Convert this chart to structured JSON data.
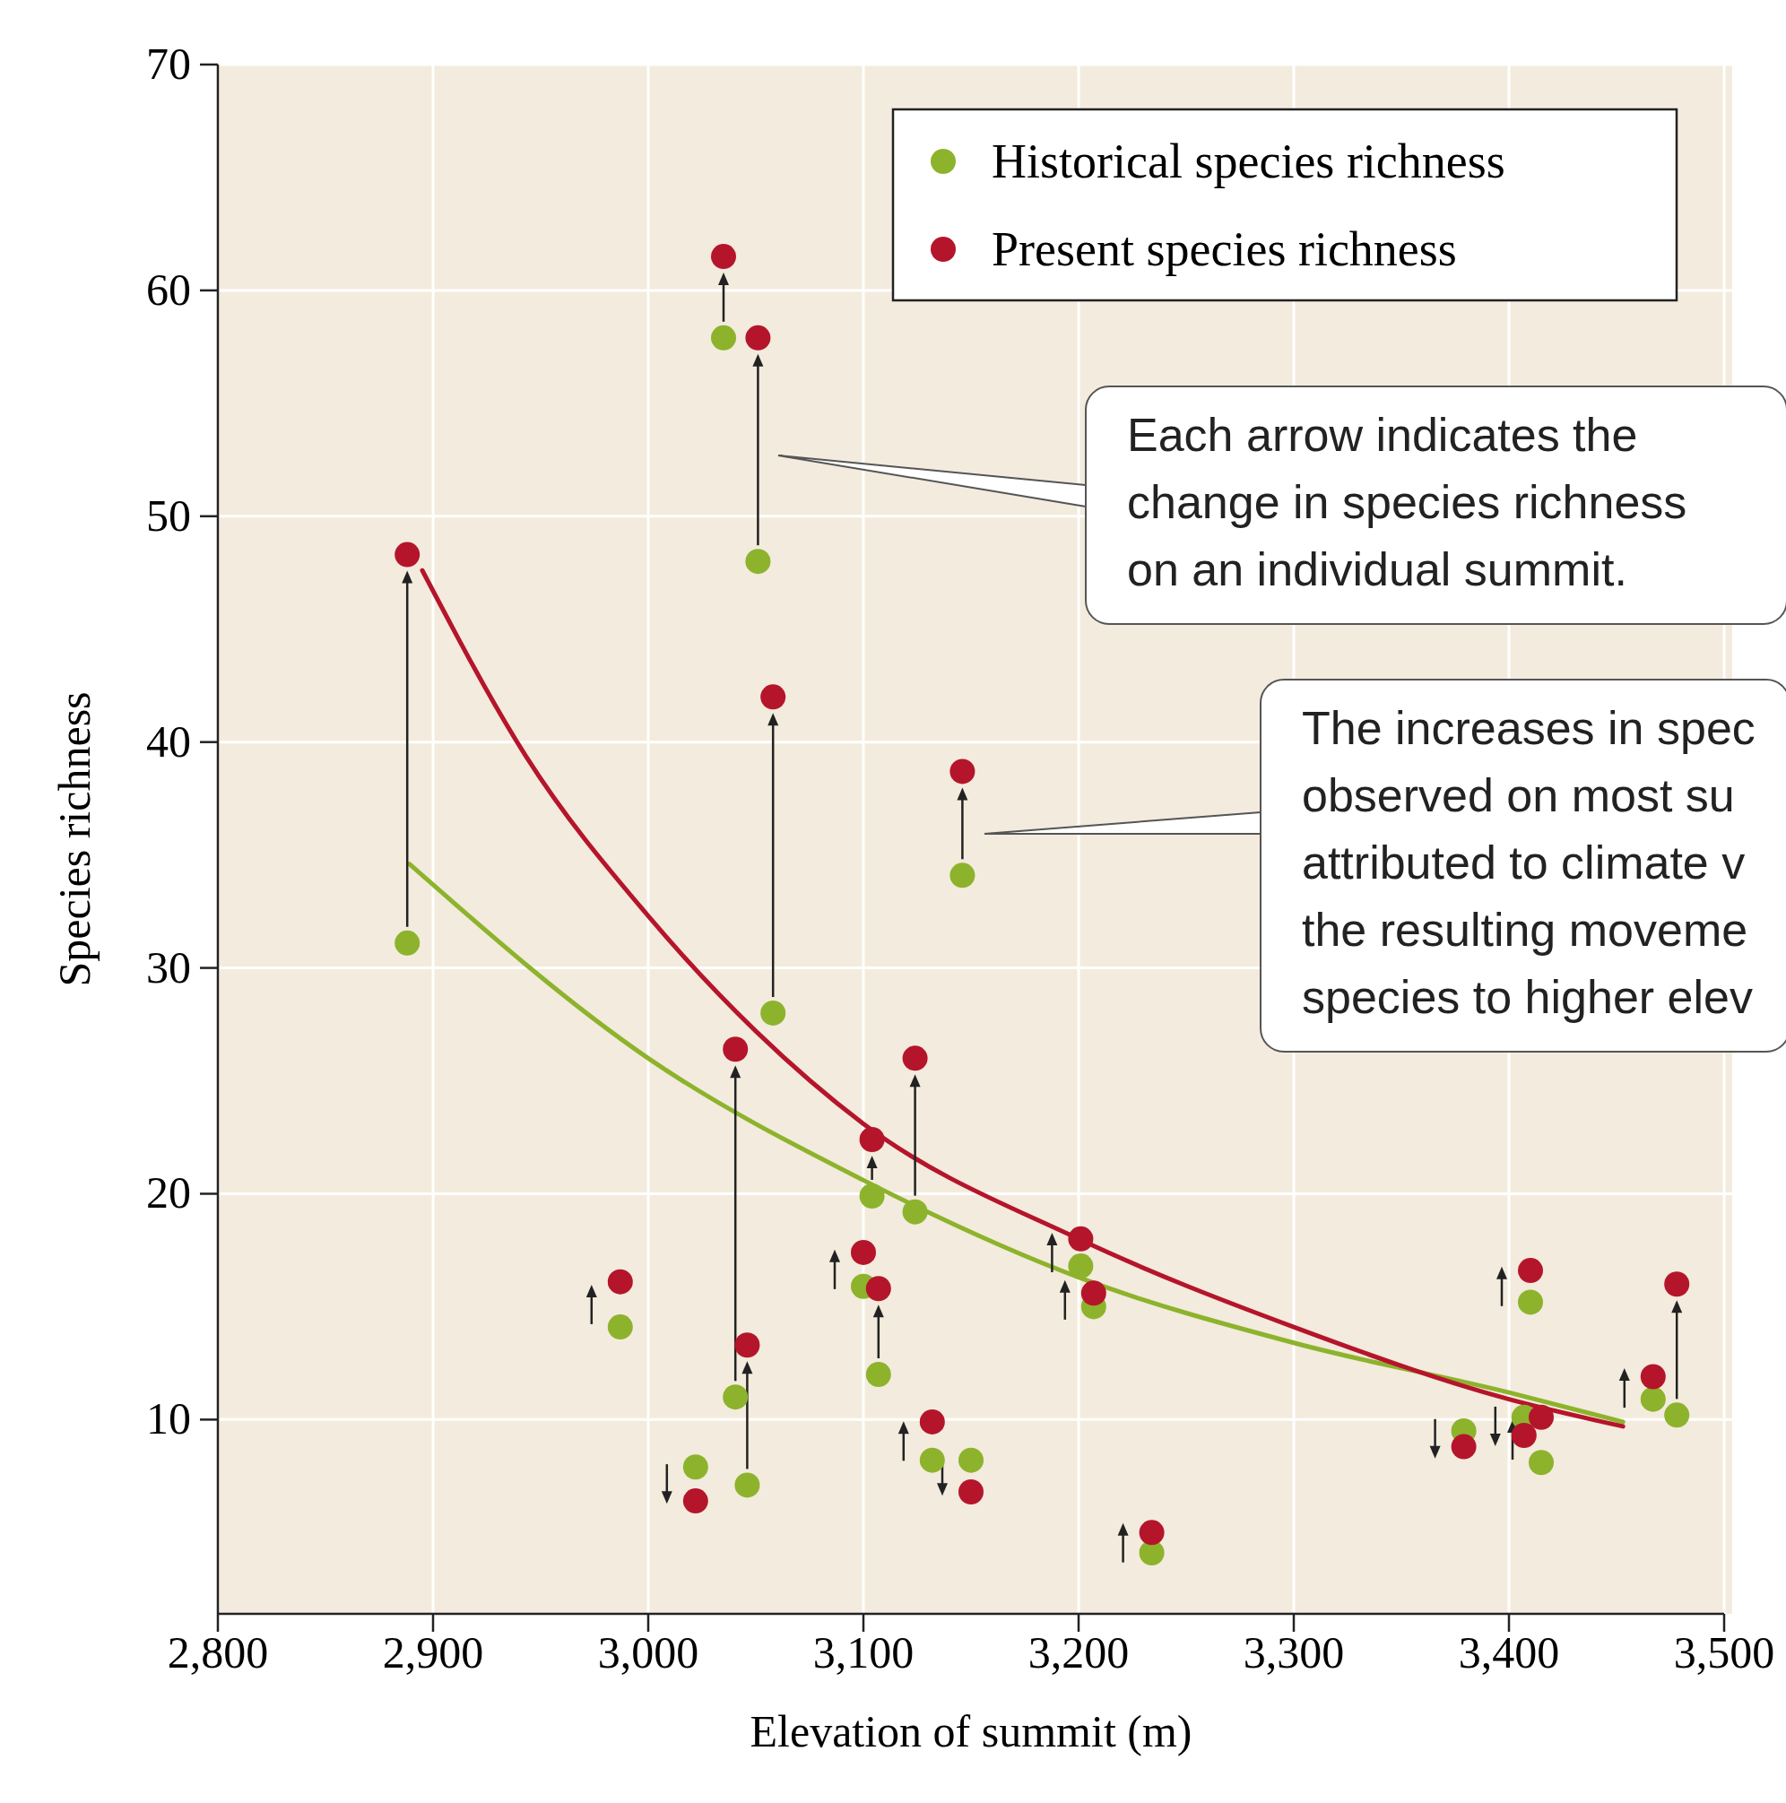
{
  "chart_data": {
    "type": "scatter",
    "xlabel": "Elevation of summit (m)",
    "ylabel": "Species richness",
    "xlim": [
      2800,
      3500
    ],
    "ylim": [
      1.4,
      70
    ],
    "xticks": [
      {
        "value": 2800,
        "label": "2,800"
      },
      {
        "value": 2900,
        "label": "2,900"
      },
      {
        "value": 3000,
        "label": "3,000"
      },
      {
        "value": 3100,
        "label": "3,100"
      },
      {
        "value": 3200,
        "label": "3,200"
      },
      {
        "value": 3300,
        "label": "3,300"
      },
      {
        "value": 3400,
        "label": "3,400"
      },
      {
        "value": 3500,
        "label": "3,500"
      }
    ],
    "yticks": [
      10,
      20,
      30,
      40,
      50,
      60,
      70
    ],
    "grid": true,
    "legend": "top right",
    "x": [
      2888,
      2987,
      3022,
      3035,
      3040.5,
      3046,
      3051,
      3058,
      3104,
      3124,
      3100,
      3107,
      3132,
      3150,
      3146,
      3201,
      3207,
      3234,
      3379,
      3407,
      3415,
      3410,
      3467,
      3478
    ],
    "series": [
      {
        "name": "Historical species richness",
        "color": "#8db32c",
        "marker": "circle",
        "values": [
          31.1,
          14.1,
          7.9,
          57.9,
          11.0,
          7.1,
          48.0,
          28.0,
          19.9,
          19.2,
          15.9,
          12.0,
          8.2,
          8.2,
          34.1,
          16.8,
          15.0,
          4.1,
          9.5,
          10.1,
          8.1,
          15.2,
          10.9,
          10.2
        ]
      },
      {
        "name": "Present species richness",
        "color": "#b5152b",
        "marker": "circle",
        "values": [
          48.3,
          16.1,
          6.4,
          61.5,
          26.4,
          13.3,
          57.9,
          42.0,
          22.4,
          26.0,
          17.4,
          15.8,
          9.9,
          6.8,
          38.7,
          18.0,
          15.6,
          5.0,
          8.8,
          9.3,
          10.1,
          16.6,
          11.9,
          16.0
        ]
      },
      {
        "type": "line",
        "color": "#8db32c",
        "x": [
          2889,
          3000,
          3100,
          3200,
          3300,
          3400,
          3453
        ],
        "values": [
          34.6,
          26.0,
          20.6,
          16.3,
          13.4,
          11.2,
          9.9
        ]
      },
      {
        "type": "line",
        "color": "#b5152b",
        "x": [
          2895,
          2943,
          3000,
          3050,
          3100,
          3200,
          3300,
          3400,
          3453
        ],
        "values": [
          47.6,
          39.4,
          32.3,
          27.2,
          23.1,
          18.0,
          14.1,
          10.9,
          9.7
        ]
      }
    ],
    "annotations": [
      "Each arrow indicates the\nchange in species richness\non an individual summit.",
      "The increases in spec\nobserved on most su\nattributed to climate v\nthe resulting moveme\nspecies to higher elev"
    ]
  }
}
